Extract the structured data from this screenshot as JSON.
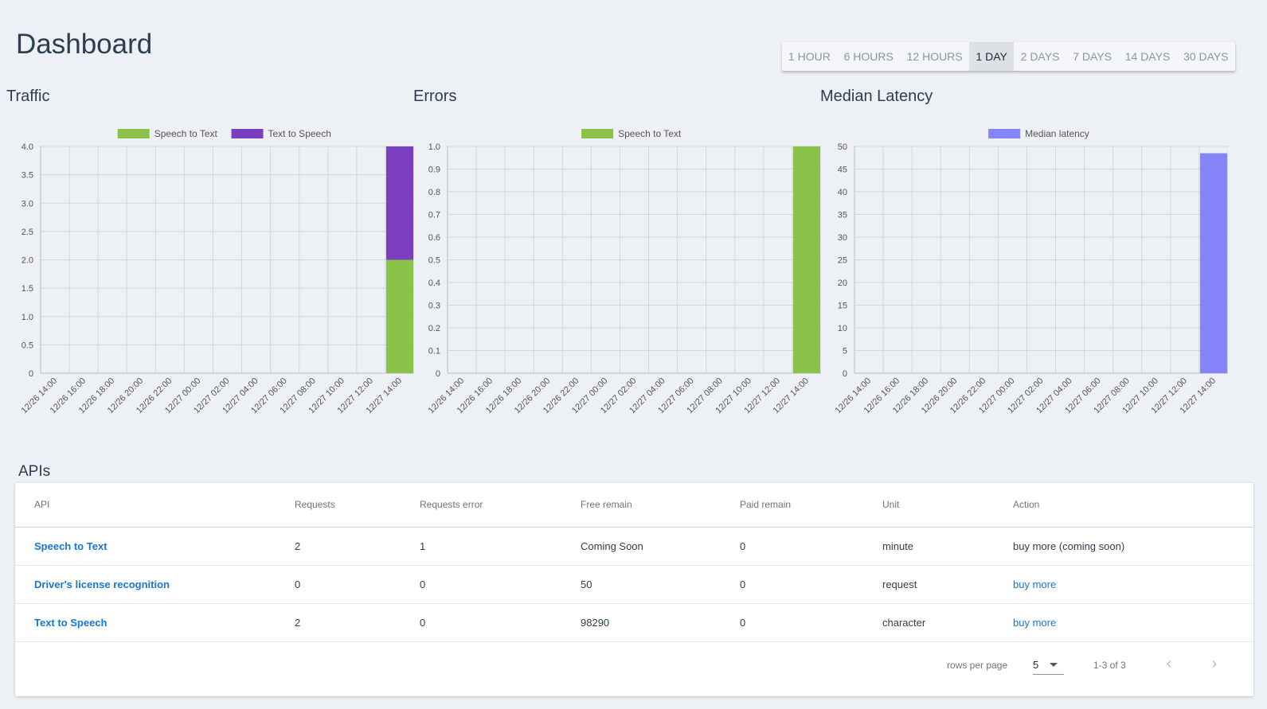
{
  "page": {
    "title": "Dashboard"
  },
  "time_ranges": [
    "1 HOUR",
    "6 HOURS",
    "12 HOURS",
    "1 DAY",
    "2 DAYS",
    "7 DAYS",
    "14 DAYS",
    "30 DAYS"
  ],
  "active_range": "1 DAY",
  "colors": {
    "speech_to_text": "#8bc34a",
    "text_to_speech": "#7b3fbf",
    "median_latency": "#8585f8"
  },
  "chart_data": [
    {
      "type": "bar",
      "title": "Traffic",
      "stacked": true,
      "categories": [
        "12/26 14:00",
        "12/26 16:00",
        "12/26 18:00",
        "12/26 20:00",
        "12/26 22:00",
        "12/27 00:00",
        "12/27 02:00",
        "12/27 04:00",
        "12/27 06:00",
        "12/27 08:00",
        "12/27 10:00",
        "12/27 12:00",
        "12/27 14:00"
      ],
      "series": [
        {
          "name": "Speech to Text",
          "color": "#8bc34a",
          "values": [
            0,
            0,
            0,
            0,
            0,
            0,
            0,
            0,
            0,
            0,
            0,
            0,
            2
          ]
        },
        {
          "name": "Text to Speech",
          "color": "#7b3fbf",
          "values": [
            0,
            0,
            0,
            0,
            0,
            0,
            0,
            0,
            0,
            0,
            0,
            0,
            2
          ]
        }
      ],
      "ylim": [
        0,
        4
      ],
      "yticks": [
        "0",
        "0.5",
        "1.0",
        "1.5",
        "2.0",
        "2.5",
        "3.0",
        "3.5",
        "4.0"
      ],
      "grid": true,
      "legend": "top-center"
    },
    {
      "type": "bar",
      "title": "Errors",
      "stacked": false,
      "categories": [
        "12/26 14:00",
        "12/26 16:00",
        "12/26 18:00",
        "12/26 20:00",
        "12/26 22:00",
        "12/27 00:00",
        "12/27 02:00",
        "12/27 04:00",
        "12/27 06:00",
        "12/27 08:00",
        "12/27 10:00",
        "12/27 12:00",
        "12/27 14:00"
      ],
      "series": [
        {
          "name": "Speech to Text",
          "color": "#8bc34a",
          "values": [
            0,
            0,
            0,
            0,
            0,
            0,
            0,
            0,
            0,
            0,
            0,
            0,
            1
          ]
        }
      ],
      "ylim": [
        0,
        1
      ],
      "yticks": [
        "0",
        "0.1",
        "0.2",
        "0.3",
        "0.4",
        "0.5",
        "0.6",
        "0.7",
        "0.8",
        "0.9",
        "1.0"
      ],
      "grid": true,
      "legend": "top-center"
    },
    {
      "type": "bar",
      "title": "Median Latency",
      "stacked": false,
      "categories": [
        "12/26 14:00",
        "12/26 16:00",
        "12/26 18:00",
        "12/26 20:00",
        "12/26 22:00",
        "12/27 00:00",
        "12/27 02:00",
        "12/27 04:00",
        "12/27 06:00",
        "12/27 08:00",
        "12/27 10:00",
        "12/27 12:00",
        "12/27 14:00"
      ],
      "series": [
        {
          "name": "Median latency",
          "color": "#8585f8",
          "values": [
            0,
            0,
            0,
            0,
            0,
            0,
            0,
            0,
            0,
            0,
            0,
            0,
            48.5
          ]
        }
      ],
      "ylim": [
        0,
        50
      ],
      "yticks": [
        "0",
        "5",
        "10",
        "15",
        "20",
        "25",
        "30",
        "35",
        "40",
        "45",
        "50"
      ],
      "grid": true,
      "legend": "top-center"
    }
  ],
  "apis": {
    "title": "APIs",
    "columns": [
      "API",
      "Requests",
      "Requests error",
      "Free remain",
      "Paid remain",
      "Unit",
      "Action"
    ],
    "rows": [
      {
        "api": "Speech to Text",
        "requests": "2",
        "requests_error": "1",
        "free_remain": "Coming Soon",
        "paid_remain": "0",
        "unit": "minute",
        "action": "buy more (coming soon)",
        "action_link": false
      },
      {
        "api": "Driver's license recognition",
        "requests": "0",
        "requests_error": "0",
        "free_remain": "50",
        "paid_remain": "0",
        "unit": "request",
        "action": "buy more",
        "action_link": true
      },
      {
        "api": "Text to Speech",
        "requests": "2",
        "requests_error": "0",
        "free_remain": "98290",
        "paid_remain": "0",
        "unit": "character",
        "action": "buy more",
        "action_link": true
      }
    ],
    "footer": {
      "rows_per_page_label": "rows per page",
      "rows_per_page": "5",
      "range": "1-3 of 3"
    }
  }
}
